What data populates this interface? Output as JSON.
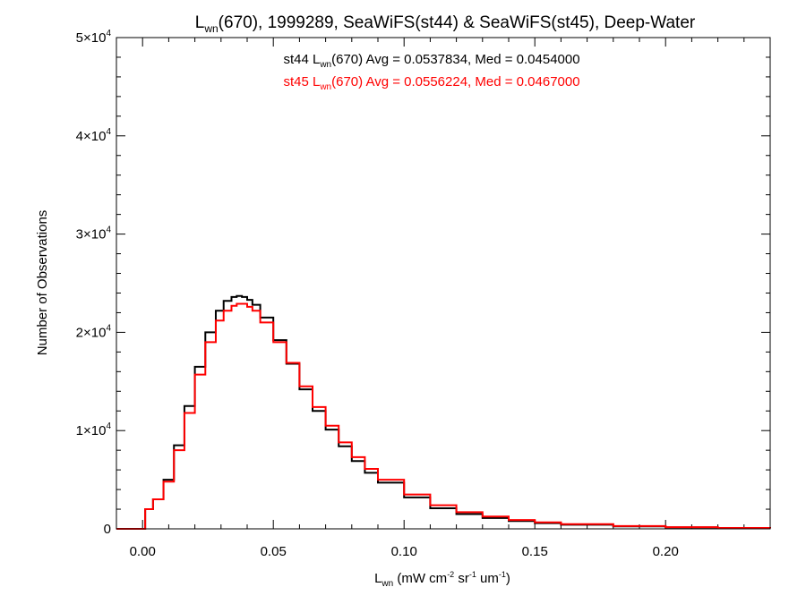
{
  "chart_data": {
    "type": "line",
    "title": {
      "pre": "L",
      "sub": "wn",
      "post": "(670), 1999289, SeaWiFS(st44) & SeaWiFS(st45), Deep-Water"
    },
    "xlabel": {
      "pre": "L",
      "sub": "wn",
      "post": " (mW cm",
      "sup1": "-2",
      "mid": " sr",
      "sup2": "-1",
      "mid2": " um",
      "sup3": "-1",
      "end": ")"
    },
    "ylabel": "Number of Observations",
    "xlim": [
      -0.01,
      0.24
    ],
    "ylim": [
      0,
      50000
    ],
    "xticks": [
      {
        "value": 0.0,
        "label": "0.00"
      },
      {
        "value": 0.05,
        "label": "0.05"
      },
      {
        "value": 0.1,
        "label": "0.10"
      },
      {
        "value": 0.15,
        "label": "0.15"
      },
      {
        "value": 0.2,
        "label": "0.20"
      }
    ],
    "yticks": [
      {
        "value": 0,
        "label": "0"
      },
      {
        "value": 10000,
        "mant": "1",
        "exp": "4"
      },
      {
        "value": 20000,
        "mant": "2",
        "exp": "4"
      },
      {
        "value": 30000,
        "mant": "3",
        "exp": "4"
      },
      {
        "value": 40000,
        "mant": "4",
        "exp": "4"
      },
      {
        "value": 50000,
        "mant": "5",
        "exp": "4"
      }
    ],
    "annotations": [
      {
        "pre": "st44 L",
        "sub": "wn",
        "post": "(670) Avg = 0.0537834, Med = 0.0454000",
        "color": "#000000"
      },
      {
        "pre": "st45 L",
        "sub": "wn",
        "post": "(670) Avg = 0.0556224, Med = 0.0467000",
        "color": "#ff0000"
      }
    ],
    "series": [
      {
        "label": "st44",
        "color": "#000000",
        "x": [
          -0.01,
          0.0,
          0.001,
          0.004,
          0.008,
          0.012,
          0.016,
          0.02,
          0.024,
          0.028,
          0.031,
          0.034,
          0.036,
          0.038,
          0.04,
          0.042,
          0.045,
          0.05,
          0.055,
          0.06,
          0.065,
          0.07,
          0.075,
          0.08,
          0.085,
          0.09,
          0.1,
          0.11,
          0.12,
          0.13,
          0.14,
          0.15,
          0.16,
          0.18,
          0.2,
          0.22,
          0.24
        ],
        "values": [
          0,
          0,
          2000,
          3000,
          5000,
          8500,
          12500,
          16500,
          20000,
          22200,
          23200,
          23600,
          23700,
          23600,
          23300,
          22800,
          21500,
          19200,
          16800,
          14200,
          12000,
          10100,
          8400,
          6900,
          5700,
          4700,
          3200,
          2100,
          1500,
          1100,
          800,
          580,
          420,
          250,
          150,
          80,
          40
        ]
      },
      {
        "label": "st45",
        "color": "#ff0000",
        "x": [
          -0.01,
          0.0,
          0.001,
          0.004,
          0.008,
          0.012,
          0.016,
          0.02,
          0.024,
          0.028,
          0.031,
          0.034,
          0.036,
          0.038,
          0.04,
          0.042,
          0.045,
          0.05,
          0.055,
          0.06,
          0.065,
          0.07,
          0.075,
          0.08,
          0.085,
          0.09,
          0.1,
          0.11,
          0.12,
          0.13,
          0.14,
          0.15,
          0.16,
          0.18,
          0.2,
          0.22,
          0.24
        ],
        "values": [
          0,
          0,
          2000,
          3000,
          4800,
          8000,
          11800,
          15700,
          19000,
          21200,
          22200,
          22700,
          22900,
          22900,
          22600,
          22200,
          21000,
          19000,
          16900,
          14500,
          12400,
          10500,
          8800,
          7300,
          6100,
          5000,
          3500,
          2400,
          1700,
          1250,
          900,
          660,
          480,
          290,
          170,
          95,
          50
        ]
      }
    ]
  }
}
